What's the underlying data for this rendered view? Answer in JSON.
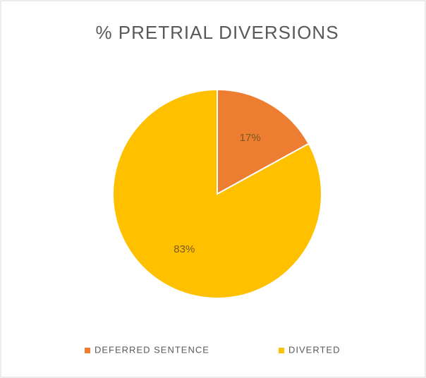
{
  "chart_data": {
    "type": "pie",
    "title": "% PRETRIAL DIVERSIONS",
    "categories": [
      "DEFERRED SENTENCE",
      "DIVERTED"
    ],
    "values": [
      17,
      83
    ],
    "value_labels": [
      "17%",
      "83%"
    ],
    "colors": [
      "#ED7D31",
      "#FFC000"
    ],
    "legend": "bottom"
  }
}
